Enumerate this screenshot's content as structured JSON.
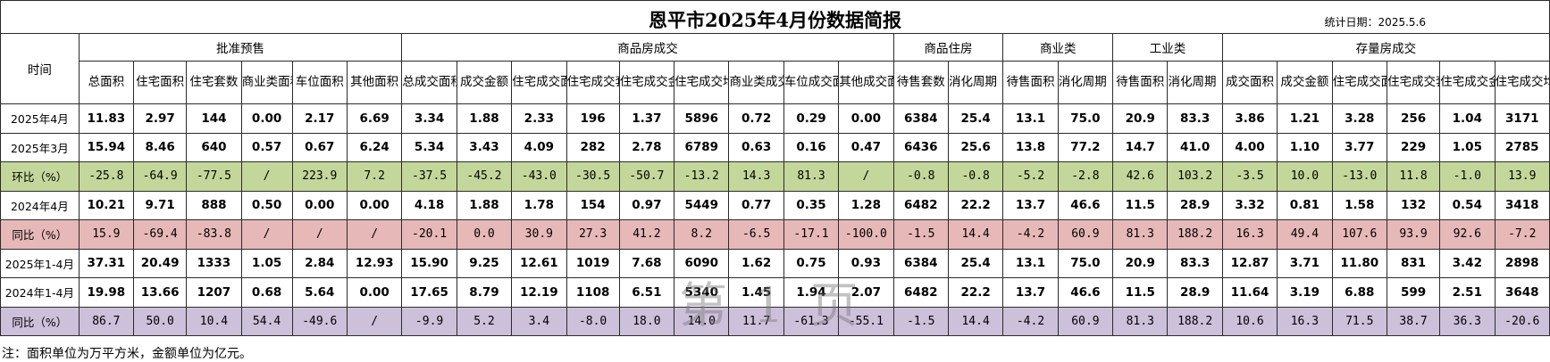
{
  "title": "恩平市2025年4月份数据简报",
  "stat_date": "统计日期：2025.5.6",
  "header": {
    "time_label": "时间",
    "groups": [
      {
        "label": "批准预售",
        "cols": [
          "总面积",
          "住宅面积",
          "住宅套数",
          "商业类面积",
          "车位面积",
          "其他面积"
        ]
      },
      {
        "label": "商品房成交",
        "cols": [
          "总成交面积",
          "成交金额",
          "住宅成交面积",
          "住宅成交套数",
          "住宅成交金额",
          "住宅成交均价",
          "商业类成交面积",
          "车位成交面积",
          "其他成交面积"
        ]
      },
      {
        "label": "商品住房",
        "cols": [
          "待售套数",
          "消化周期（月）"
        ]
      },
      {
        "label": "商业类",
        "cols": [
          "待售面积",
          "消化周期（月）"
        ]
      },
      {
        "label": "工业类",
        "cols": [
          "待售面积",
          "消化周期（月）"
        ]
      },
      {
        "label": "存量房成交",
        "cols": [
          "成交面积",
          "成交金额",
          "住宅成交面积",
          "住宅成交套数",
          "住宅成交金额",
          "住宅成交均价"
        ]
      }
    ]
  },
  "rows": [
    {
      "label": "2025年4月",
      "style": "plain",
      "values": [
        "11.83",
        "2.97",
        "144",
        "0.00",
        "2.17",
        "6.69",
        "3.34",
        "1.88",
        "2.33",
        "196",
        "1.37",
        "5896",
        "0.72",
        "0.29",
        "0.00",
        "6384",
        "25.4",
        "13.1",
        "75.0",
        "20.9",
        "83.3",
        "3.86",
        "1.21",
        "3.28",
        "256",
        "1.04",
        "3171"
      ]
    },
    {
      "label": "2025年3月",
      "style": "plain",
      "values": [
        "15.94",
        "8.46",
        "640",
        "0.57",
        "0.67",
        "6.24",
        "5.34",
        "3.43",
        "4.09",
        "282",
        "2.78",
        "6789",
        "0.63",
        "0.16",
        "0.47",
        "6436",
        "25.6",
        "13.8",
        "77.2",
        "14.7",
        "41.0",
        "4.00",
        "1.10",
        "3.77",
        "229",
        "1.05",
        "2785"
      ]
    },
    {
      "label": "环比（%）",
      "style": "green",
      "values": [
        "-25.8",
        "-64.9",
        "-77.5",
        "/",
        "223.9",
        "7.2",
        "-37.5",
        "-45.2",
        "-43.0",
        "-30.5",
        "-50.7",
        "-13.2",
        "14.3",
        "81.3",
        "/",
        "-0.8",
        "-0.8",
        "-5.2",
        "-2.8",
        "42.6",
        "103.2",
        "-3.5",
        "10.0",
        "-13.0",
        "11.8",
        "-1.0",
        "13.9"
      ]
    },
    {
      "label": "2024年4月",
      "style": "plain",
      "values": [
        "10.21",
        "9.71",
        "888",
        "0.50",
        "0.00",
        "0.00",
        "4.18",
        "1.88",
        "1.78",
        "154",
        "0.97",
        "5449",
        "0.77",
        "0.35",
        "1.28",
        "6482",
        "22.2",
        "13.7",
        "46.6",
        "11.5",
        "28.9",
        "3.32",
        "0.81",
        "1.58",
        "132",
        "0.54",
        "3418"
      ]
    },
    {
      "label": "同比（%）",
      "style": "red",
      "values": [
        "15.9",
        "-69.4",
        "-83.8",
        "/",
        "/",
        "/",
        "-20.1",
        "0.0",
        "30.9",
        "27.3",
        "41.2",
        "8.2",
        "-6.5",
        "-17.1",
        "-100.0",
        "-1.5",
        "14.4",
        "-4.2",
        "60.9",
        "81.3",
        "188.2",
        "16.3",
        "49.4",
        "107.6",
        "93.9",
        "92.6",
        "-7.2"
      ]
    },
    {
      "label": "2025年1-4月",
      "style": "plain",
      "values": [
        "37.31",
        "20.49",
        "1333",
        "1.05",
        "2.84",
        "12.93",
        "15.90",
        "9.25",
        "12.61",
        "1019",
        "7.68",
        "6090",
        "1.62",
        "0.75",
        "0.93",
        "6384",
        "25.4",
        "13.1",
        "75.0",
        "20.9",
        "83.3",
        "12.87",
        "3.71",
        "11.80",
        "831",
        "3.42",
        "2898"
      ]
    },
    {
      "label": "2024年1-4月",
      "style": "plain",
      "values": [
        "19.98",
        "13.66",
        "1207",
        "0.68",
        "5.64",
        "0.00",
        "17.65",
        "8.79",
        "12.19",
        "1108",
        "6.51",
        "5340",
        "1.45",
        "1.94",
        "2.07",
        "6482",
        "22.2",
        "13.7",
        "46.6",
        "11.5",
        "28.9",
        "11.64",
        "3.19",
        "6.88",
        "599",
        "2.51",
        "3648"
      ]
    },
    {
      "label": "同比（%）",
      "style": "purple",
      "values": [
        "86.7",
        "50.0",
        "10.4",
        "54.4",
        "-49.6",
        "/",
        "-9.9",
        "5.2",
        "3.4",
        "-8.0",
        "18.0",
        "14.0",
        "11.7",
        "-61.3",
        "-55.1",
        "-1.5",
        "14.4",
        "-4.2",
        "60.9",
        "81.3",
        "188.2",
        "10.6",
        "16.3",
        "71.5",
        "38.7",
        "36.3",
        "-20.6"
      ]
    }
  ],
  "note": "注：面积单位为万平方米，金额单位为亿元。",
  "watermark": "第 1 页",
  "colors": {
    "green": "#c4d79b",
    "red": "#e6b8b7",
    "purple": "#ccc0da"
  }
}
